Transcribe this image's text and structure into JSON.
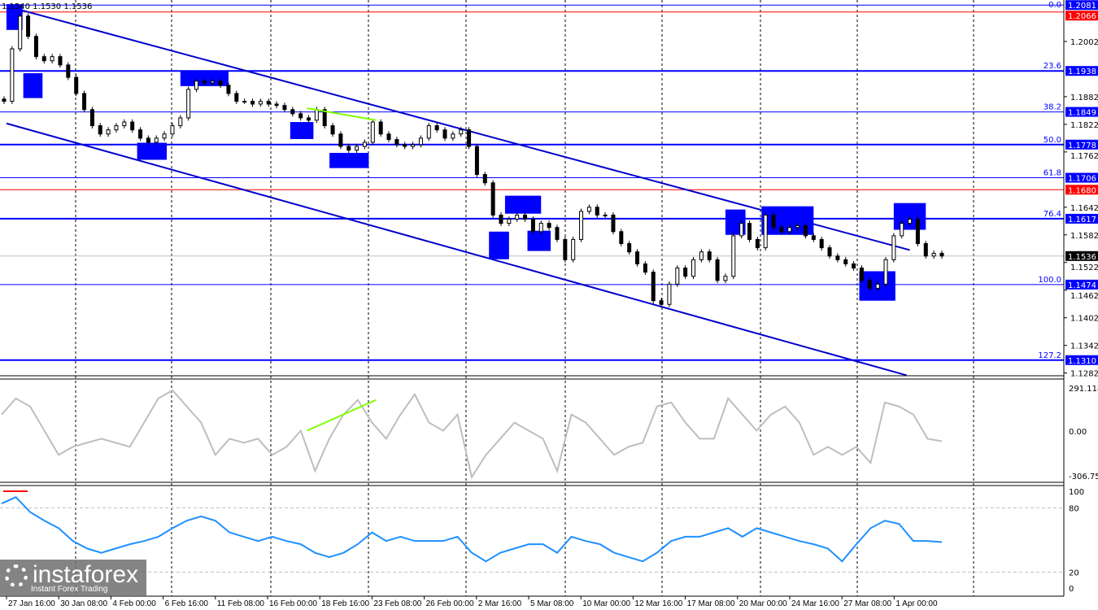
{
  "header": {
    "ohlc_text": "1.1540 1.1530 1.1536"
  },
  "logo": {
    "name": "instaforex",
    "tagline": "Instant Forex Trading"
  },
  "colors": {
    "fib_line": "#0000ff",
    "resistance_line": "#ff0000",
    "channel": "#0000cd",
    "boxes": "#0000ff",
    "divergence": "#7fff00",
    "cci_line": "#bebebe",
    "rsi_line": "#1e90ff",
    "current_price_bg": "#000000"
  },
  "chart_data": [
    {
      "type": "candlestick",
      "title": "",
      "ylim": [
        1.1276,
        1.2092
      ],
      "y_ticks": [
        "1.2002",
        "1.1882",
        "1.1822",
        "1.1762",
        "1.1642",
        "1.1582",
        "1.1522",
        "1.1462",
        "1.1402",
        "1.1342",
        "1.1282"
      ],
      "x_ticks": [
        "27 Jan 16:00",
        "30 Jan 08:00",
        "4 Feb 00:00",
        "6 Feb 16:00",
        "11 Feb 08:00",
        "16 Feb 00:00",
        "18 Feb 16:00",
        "23 Feb 08:00",
        "26 Feb 00:00",
        "2 Mar 16:00",
        "5 Mar 08:00",
        "10 Mar 00:00",
        "12 Mar 16:00",
        "17 Mar 08:00",
        "20 Mar 00:00",
        "24 Mar 16:00",
        "27 Mar 08:00",
        "1 Apr 00:00"
      ],
      "closes": [
        1.1872,
        1.1986,
        1.2057,
        1.2013,
        1.1969,
        1.196,
        1.1969,
        1.1951,
        1.1924,
        1.1889,
        1.1854,
        1.1819,
        1.1801,
        1.181,
        1.1819,
        1.1827,
        1.181,
        1.1792,
        1.1783,
        1.1792,
        1.1801,
        1.1819,
        1.1836,
        1.1898,
        1.1916,
        1.1912,
        1.1916,
        1.1907,
        1.1889,
        1.1872,
        1.1872,
        1.1866,
        1.1872,
        1.1866,
        1.1863,
        1.1854,
        1.1845,
        1.1836,
        1.1831,
        1.1854,
        1.1819,
        1.1801,
        1.1774,
        1.1766,
        1.1774,
        1.1783,
        1.1827,
        1.1801,
        1.1789,
        1.1778,
        1.1774,
        1.1778,
        1.1792,
        1.1819,
        1.181,
        1.1792,
        1.1801,
        1.181,
        1.1774,
        1.1713,
        1.1695,
        1.1625,
        1.1607,
        1.1616,
        1.1625,
        1.1616,
        1.1589,
        1.1607,
        1.1598,
        1.1572,
        1.1528,
        1.1572,
        1.1633,
        1.1642,
        1.1625,
        1.1625,
        1.1589,
        1.1563,
        1.1545,
        1.1519,
        1.1501,
        1.1439,
        1.1431,
        1.1475,
        1.151,
        1.1492,
        1.1528,
        1.1545,
        1.1528,
        1.1483,
        1.1492,
        1.158,
        1.1607,
        1.1572,
        1.1554,
        1.1625,
        1.1598,
        1.1589,
        1.1598,
        1.1602,
        1.158,
        1.1572,
        1.1554,
        1.1536,
        1.1528,
        1.1519,
        1.151,
        1.1483,
        1.1466,
        1.1475,
        1.1528,
        1.158,
        1.1607,
        1.1616,
        1.1563,
        1.1536,
        1.1542,
        1.1536
      ],
      "fib_levels": [
        {
          "level": "0.0",
          "price": "1.2081"
        },
        {
          "level": "23.6",
          "price": "1.1938"
        },
        {
          "level": "38.2",
          "price": "1.1849"
        },
        {
          "level": "50.0",
          "price": "1.1778"
        },
        {
          "level": "61.8",
          "price": "1.1706"
        },
        {
          "level": "76.4",
          "price": "1.1617"
        },
        {
          "level": "100.0",
          "price": "1.1474"
        },
        {
          "level": "127.2",
          "price": "1.1310"
        }
      ],
      "red_levels": [
        "1.2066",
        "1.1680"
      ],
      "current_price": "1.1536",
      "channel": {
        "upper": [
          [
            1.3,
            1.2074
          ],
          [
            113,
            1.1549
          ]
        ],
        "lower": [
          [
            0.3,
            1.1824
          ],
          [
            112.6,
            1.1277
          ]
        ]
      },
      "divergence": [
        [
          37.8,
          1.1857
        ],
        [
          46.4,
          1.1831
        ]
      ],
      "boxes": [
        {
          "bars": [
            0.3,
            2.3
          ],
          "prices": [
            1.2083,
            1.2027
          ]
        },
        {
          "bars": [
            2.4,
            4.8
          ],
          "prices": [
            1.1933,
            1.1879
          ]
        },
        {
          "bars": [
            22,
            28
          ],
          "prices": [
            1.1939,
            1.1905
          ]
        },
        {
          "bars": [
            16.6,
            20.3
          ],
          "prices": [
            1.1782,
            1.1745
          ]
        },
        {
          "bars": [
            35.7,
            38.6
          ],
          "prices": [
            1.1827,
            1.179
          ]
        },
        {
          "bars": [
            40.6,
            45.5
          ],
          "prices": [
            1.176,
            1.1727
          ]
        },
        {
          "bars": [
            60.5,
            63
          ],
          "prices": [
            1.1589,
            1.1529
          ]
        },
        {
          "bars": [
            62.5,
            67
          ],
          "prices": [
            1.1667,
            1.1628
          ]
        },
        {
          "bars": [
            65.3,
            68.2
          ],
          "prices": [
            1.1591,
            1.1547
          ]
        },
        {
          "bars": [
            90,
            92.5
          ],
          "prices": [
            1.1637,
            1.1582
          ]
        },
        {
          "bars": [
            94.5,
            101
          ],
          "prices": [
            1.1644,
            1.1582
          ]
        },
        {
          "bars": [
            106.7,
            111.2
          ],
          "prices": [
            1.1503,
            1.1439
          ]
        },
        {
          "bars": [
            111,
            115
          ],
          "prices": [
            1.1651,
            1.1593
          ]
        }
      ]
    },
    {
      "type": "line",
      "title": "",
      "ylim": [
        -306.75,
        291.1149
      ],
      "y_ticks": [
        "291.1149",
        "0.00",
        "-306.75"
      ],
      "values": [
        104,
        208,
        156,
        0,
        -156,
        -104,
        -78,
        -52,
        -78,
        -104,
        52,
        208,
        260,
        156,
        52,
        -156,
        -52,
        -78,
        -52,
        -156,
        -104,
        0,
        -260,
        -52,
        104,
        198,
        52,
        -52,
        104,
        234,
        52,
        0,
        104,
        -300,
        -156,
        -52,
        52,
        0,
        -52,
        -260,
        104,
        52,
        -52,
        -156,
        -104,
        -78,
        156,
        182,
        52,
        -52,
        -52,
        208,
        104,
        0,
        104,
        156,
        52,
        -156,
        -104,
        -156,
        -104,
        -208,
        182,
        156,
        104,
        -52,
        -68
      ],
      "divergence": [
        [
          37.8,
          0
        ],
        [
          46.4,
          198
        ]
      ]
    },
    {
      "type": "line",
      "title": "",
      "ylim": [
        0,
        100
      ],
      "y_ticks": [
        "100",
        "80",
        "20",
        "0"
      ],
      "levels": [
        80,
        20
      ],
      "values": [
        84,
        90,
        76,
        68,
        61,
        49,
        42,
        38,
        42,
        46,
        49,
        53,
        61,
        68,
        72,
        68,
        57,
        53,
        49,
        53,
        49,
        46,
        38,
        34,
        38,
        46,
        57,
        49,
        53,
        49,
        49,
        49,
        53,
        38,
        30,
        38,
        42,
        46,
        46,
        38,
        53,
        49,
        46,
        38,
        34,
        30,
        38,
        49,
        53,
        53,
        57,
        61,
        53,
        61,
        57,
        53,
        49,
        46,
        42,
        30,
        46,
        61,
        68,
        65,
        49,
        49,
        48
      ]
    }
  ]
}
